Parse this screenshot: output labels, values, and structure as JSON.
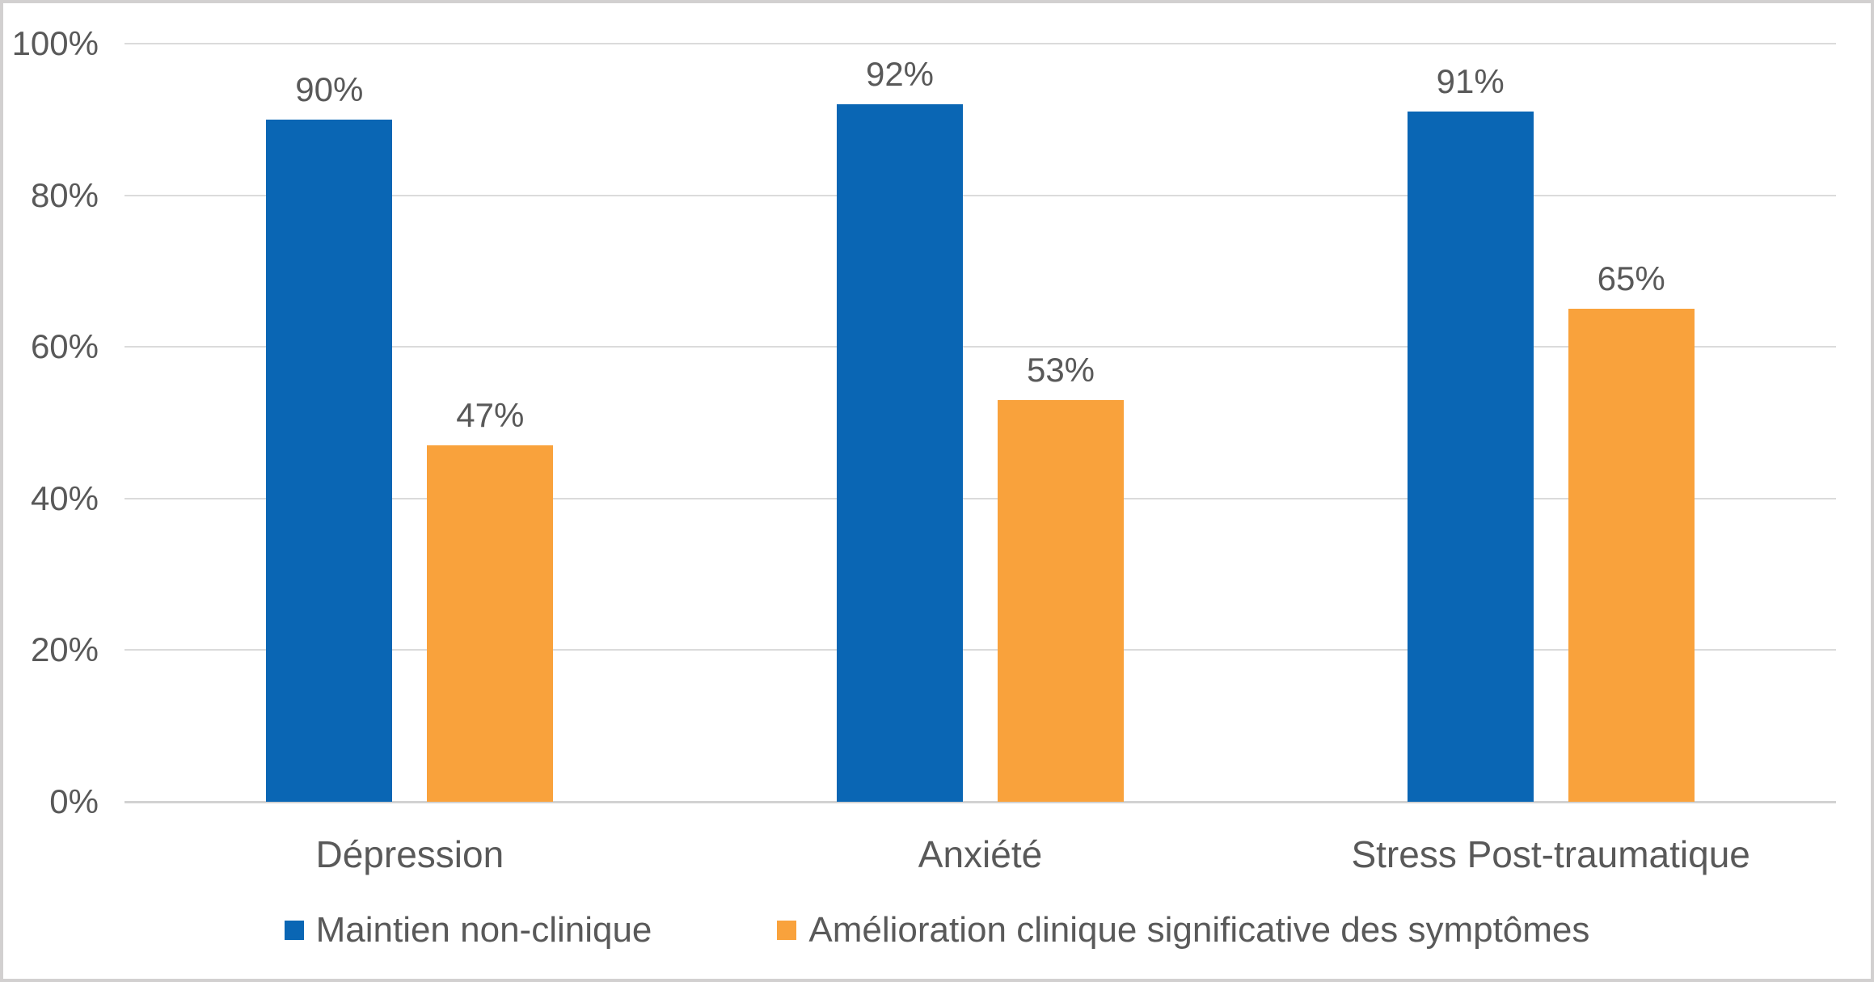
{
  "colors": {
    "series_blue": "#0a66b4",
    "series_orange": "#f9a23c",
    "gridline": "#dbdbdb",
    "axis_line": "#d2d2d2",
    "text": "#595959",
    "frame_border": "#d2d0d0",
    "background": "#ffffff"
  },
  "chart_data": {
    "type": "bar",
    "title": "",
    "categories": [
      "Dépression",
      "Anxiété",
      "Stress Post-traumatique"
    ],
    "series": [
      {
        "name": "Maintien non-clinique",
        "color": "#0a66b4",
        "values": [
          90,
          92,
          91
        ],
        "labels": [
          "90%",
          "92%",
          "91%"
        ]
      },
      {
        "name": "Amélioration clinique significative des symptômes",
        "color": "#f9a23c",
        "values": [
          47,
          53,
          65
        ],
        "labels": [
          "47%",
          "53%",
          "65%"
        ]
      }
    ],
    "ylabel": "",
    "xlabel": "",
    "ylim": [
      0,
      100
    ],
    "ytick_values": [
      0,
      20,
      40,
      60,
      80,
      100
    ],
    "ytick_labels": [
      "0%",
      "20%",
      "40%",
      "60%",
      "80%",
      "100%"
    ],
    "grid": true,
    "gridline_interval": 20,
    "value_suffix": "%",
    "legend_position": "bottom"
  }
}
